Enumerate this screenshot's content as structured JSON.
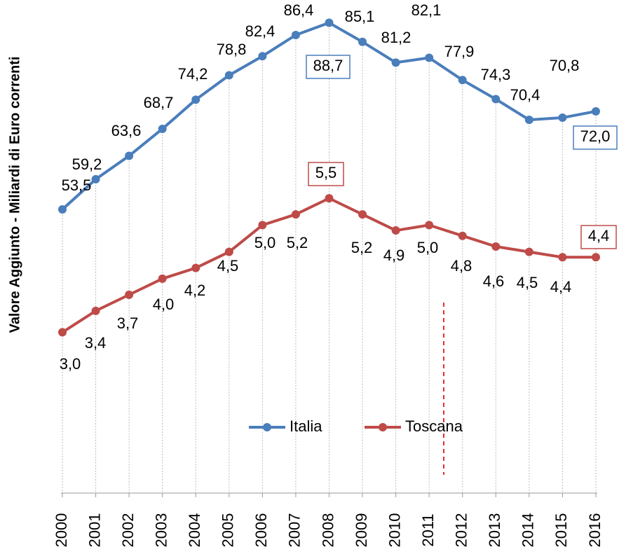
{
  "chart_data": {
    "type": "line",
    "y_axis_label": "Valore Aggiunto - Miliardi di Euro correnti",
    "categories": [
      "2000",
      "2001",
      "2002",
      "2003",
      "2004",
      "2005",
      "2006",
      "2007",
      "2008",
      "2009",
      "2010",
      "2011",
      "2012",
      "2013",
      "2014",
      "2015",
      "2016"
    ],
    "ylim": [
      0,
      93
    ],
    "y2lim": [
      0,
      9.2
    ],
    "legend": "bottom",
    "series": [
      {
        "name": "Italia",
        "color": "#4a7ebb",
        "values": [
          53.5,
          59.2,
          63.6,
          68.7,
          74.2,
          78.8,
          82.4,
          86.4,
          88.7,
          85.1,
          81.2,
          82.1,
          77.9,
          74.3,
          70.4,
          70.8,
          72.0
        ],
        "value_labels": [
          "53,5",
          "59,2",
          "63,6",
          "68,7",
          "74,2",
          "78,8",
          "82,4",
          "86,4",
          "88,7",
          "85,1",
          "81,2",
          "82,1",
          "77,9",
          "74,3",
          "70,4",
          "70,8",
          "72,0"
        ]
      },
      {
        "name": "Toscana",
        "color": "#be4b48",
        "axis": "y2",
        "values": [
          3.0,
          3.4,
          3.7,
          4.0,
          4.2,
          4.5,
          5.0,
          5.2,
          5.5,
          5.2,
          4.9,
          5.0,
          4.8,
          4.6,
          4.5,
          4.4,
          4.4
        ],
        "value_labels": [
          "3,0",
          "3,4",
          "3,7",
          "4,0",
          "4,2",
          "4,5",
          "5,0",
          "5,2",
          "5,5",
          "5,2",
          "4,9",
          "5,0",
          "4,8",
          "4,6",
          "4,5",
          "4,4",
          "4,4"
        ]
      }
    ]
  }
}
